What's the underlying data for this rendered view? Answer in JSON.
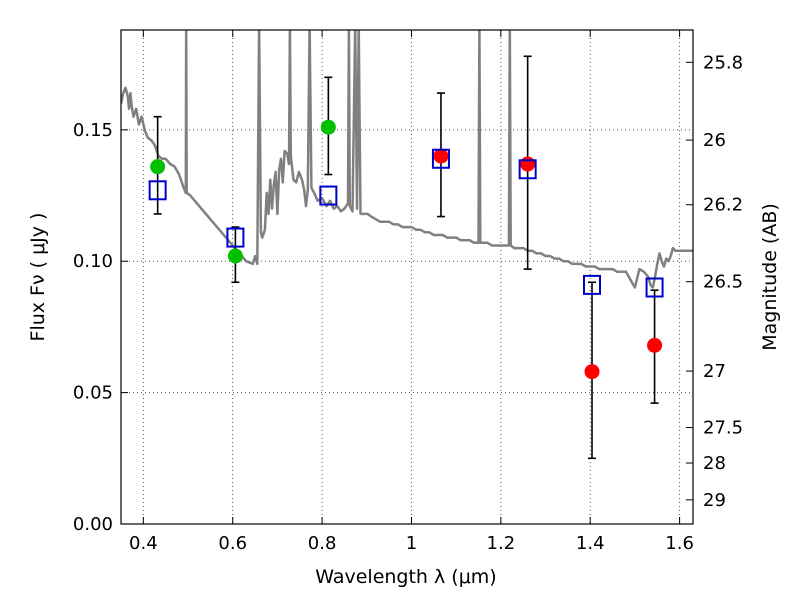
{
  "chart_data": {
    "type": "scatter",
    "title": "",
    "xlabel": "Wavelength  λ (μm)",
    "ylabel": "Flux  Fν  ( μJy )",
    "ylabel_right": "Magnitude (AB)",
    "xlim": [
      0.35,
      1.63
    ],
    "ylim": [
      0.0,
      0.188
    ],
    "grid": true,
    "legend": "none",
    "x_ticks": [
      0.4,
      0.6,
      0.8,
      1.0,
      1.2,
      1.4,
      1.6
    ],
    "x_tick_labels": [
      "0.4",
      "0.6",
      "0.8",
      "1",
      "1.2",
      "1.4",
      "1.6"
    ],
    "y_ticks": [
      0.0,
      0.05,
      0.1,
      0.15
    ],
    "y_tick_labels": [
      "0.00",
      "0.05",
      "0.10",
      "0.15"
    ],
    "right_ticks": [
      {
        "label": "25.8",
        "flux": 0.1757
      },
      {
        "label": "26",
        "flux": 0.1461
      },
      {
        "label": "26.2",
        "flux": 0.1215
      },
      {
        "label": "26.5",
        "flux": 0.0922
      },
      {
        "label": "27",
        "flux": 0.0582
      },
      {
        "label": "27.5",
        "flux": 0.0367
      },
      {
        "label": "28",
        "flux": 0.0232
      },
      {
        "label": "29",
        "flux": 0.0092
      }
    ],
    "colors": {
      "model": "#808080",
      "green": "#00c000",
      "red": "#ff0000",
      "box": "#0000cc",
      "error": "#000000",
      "grid": "#555555"
    },
    "series": [
      {
        "marker": "circle",
        "color": "green",
        "points": [
          {
            "x": 0.432,
            "y": 0.136,
            "err_lo": 0.118,
            "err_hi": 0.155
          },
          {
            "x": 0.606,
            "y": 0.102,
            "err_lo": 0.092,
            "err_hi": 0.113
          },
          {
            "x": 0.814,
            "y": 0.151,
            "err_lo": 0.133,
            "err_hi": 0.17
          }
        ]
      },
      {
        "marker": "circle",
        "color": "red",
        "points": [
          {
            "x": 1.066,
            "y": 0.14,
            "err_lo": 0.117,
            "err_hi": 0.164
          },
          {
            "x": 1.26,
            "y": 0.137,
            "err_lo": 0.097,
            "err_hi": 0.178
          },
          {
            "x": 1.404,
            "y": 0.058,
            "err_lo": 0.025,
            "err_hi": 0.092
          },
          {
            "x": 1.544,
            "y": 0.068,
            "err_lo": 0.046,
            "err_hi": 0.089
          }
        ]
      },
      {
        "marker": "square",
        "color": "box",
        "points": [
          {
            "x": 0.432,
            "y": 0.127
          },
          {
            "x": 0.606,
            "y": 0.109
          },
          {
            "x": 0.814,
            "y": 0.125
          },
          {
            "x": 1.066,
            "y": 0.139
          },
          {
            "x": 1.26,
            "y": 0.135
          },
          {
            "x": 1.404,
            "y": 0.091
          },
          {
            "x": 1.544,
            "y": 0.09
          }
        ]
      }
    ],
    "model_spectrum": {
      "points": [
        [
          0.35,
          0.16
        ],
        [
          0.355,
          0.164
        ],
        [
          0.36,
          0.166
        ],
        [
          0.365,
          0.163
        ],
        [
          0.368,
          0.158
        ],
        [
          0.371,
          0.164
        ],
        [
          0.374,
          0.159
        ],
        [
          0.378,
          0.155
        ],
        [
          0.384,
          0.158
        ],
        [
          0.39,
          0.152
        ],
        [
          0.396,
          0.155
        ],
        [
          0.403,
          0.15
        ],
        [
          0.41,
          0.147
        ],
        [
          0.418,
          0.146
        ],
        [
          0.426,
          0.144
        ],
        [
          0.434,
          0.14
        ],
        [
          0.442,
          0.139
        ],
        [
          0.45,
          0.139
        ],
        [
          0.46,
          0.137
        ],
        [
          0.47,
          0.136
        ],
        [
          0.48,
          0.133
        ],
        [
          0.49,
          0.128
        ],
        [
          0.495,
          0.126
        ],
        [
          0.496,
          0.19
        ],
        [
          0.497,
          0.126
        ],
        [
          0.505,
          0.125
        ],
        [
          0.52,
          0.122
        ],
        [
          0.54,
          0.118
        ],
        [
          0.56,
          0.114
        ],
        [
          0.58,
          0.11
        ],
        [
          0.6,
          0.106
        ],
        [
          0.615,
          0.103
        ],
        [
          0.63,
          0.1
        ],
        [
          0.645,
          0.099
        ],
        [
          0.65,
          0.102
        ],
        [
          0.655,
          0.099
        ],
        [
          0.659,
          0.19
        ],
        [
          0.663,
          0.111
        ],
        [
          0.666,
          0.109
        ],
        [
          0.672,
          0.112
        ],
        [
          0.676,
          0.126
        ],
        [
          0.68,
          0.118
        ],
        [
          0.684,
          0.131
        ],
        [
          0.688,
          0.12
        ],
        [
          0.692,
          0.129
        ],
        [
          0.696,
          0.134
        ],
        [
          0.7,
          0.118
        ],
        [
          0.704,
          0.135
        ],
        [
          0.708,
          0.139
        ],
        [
          0.712,
          0.13
        ],
        [
          0.716,
          0.142
        ],
        [
          0.722,
          0.141
        ],
        [
          0.726,
          0.137
        ],
        [
          0.728,
          0.19
        ],
        [
          0.73,
          0.14
        ],
        [
          0.736,
          0.131
        ],
        [
          0.742,
          0.13
        ],
        [
          0.748,
          0.134
        ],
        [
          0.755,
          0.131
        ],
        [
          0.76,
          0.127
        ],
        [
          0.764,
          0.121
        ],
        [
          0.768,
          0.127
        ],
        [
          0.772,
          0.19
        ],
        [
          0.776,
          0.128
        ],
        [
          0.782,
          0.126
        ],
        [
          0.79,
          0.123
        ],
        [
          0.8,
          0.124
        ],
        [
          0.81,
          0.121
        ],
        [
          0.818,
          0.123
        ],
        [
          0.826,
          0.12
        ],
        [
          0.834,
          0.121
        ],
        [
          0.842,
          0.119
        ],
        [
          0.85,
          0.12
        ],
        [
          0.858,
          0.122
        ],
        [
          0.86,
          0.19
        ],
        [
          0.862,
          0.121
        ],
        [
          0.868,
          0.119
        ],
        [
          0.874,
          0.19
        ],
        [
          0.878,
          0.12
        ],
        [
          0.882,
          0.19
        ],
        [
          0.886,
          0.118
        ],
        [
          0.894,
          0.118
        ],
        [
          0.902,
          0.118
        ],
        [
          0.91,
          0.117
        ],
        [
          0.92,
          0.116
        ],
        [
          0.93,
          0.115
        ],
        [
          0.94,
          0.115
        ],
        [
          0.95,
          0.115
        ],
        [
          0.96,
          0.114
        ],
        [
          0.97,
          0.114
        ],
        [
          0.98,
          0.113
        ],
        [
          0.99,
          0.113
        ],
        [
          1.0,
          0.113
        ],
        [
          1.01,
          0.112
        ],
        [
          1.02,
          0.112
        ],
        [
          1.03,
          0.111
        ],
        [
          1.04,
          0.111
        ],
        [
          1.05,
          0.11
        ],
        [
          1.06,
          0.11
        ],
        [
          1.07,
          0.11
        ],
        [
          1.08,
          0.109
        ],
        [
          1.09,
          0.109
        ],
        [
          1.1,
          0.109
        ],
        [
          1.11,
          0.108
        ],
        [
          1.12,
          0.108
        ],
        [
          1.13,
          0.108
        ],
        [
          1.14,
          0.107
        ],
        [
          1.15,
          0.107
        ],
        [
          1.152,
          0.19
        ],
        [
          1.154,
          0.107
        ],
        [
          1.16,
          0.107
        ],
        [
          1.17,
          0.107
        ],
        [
          1.18,
          0.106
        ],
        [
          1.19,
          0.106
        ],
        [
          1.2,
          0.106
        ],
        [
          1.21,
          0.106
        ],
        [
          1.218,
          0.106
        ],
        [
          1.22,
          0.19
        ],
        [
          1.222,
          0.106
        ],
        [
          1.23,
          0.105
        ],
        [
          1.24,
          0.105
        ],
        [
          1.25,
          0.105
        ],
        [
          1.26,
          0.104
        ],
        [
          1.27,
          0.104
        ],
        [
          1.28,
          0.103
        ],
        [
          1.29,
          0.103
        ],
        [
          1.3,
          0.102
        ],
        [
          1.31,
          0.102
        ],
        [
          1.32,
          0.101
        ],
        [
          1.33,
          0.101
        ],
        [
          1.34,
          0.1
        ],
        [
          1.35,
          0.1
        ],
        [
          1.36,
          0.099
        ],
        [
          1.37,
          0.099
        ],
        [
          1.38,
          0.099
        ],
        [
          1.39,
          0.098
        ],
        [
          1.4,
          0.098
        ],
        [
          1.41,
          0.098
        ],
        [
          1.42,
          0.097
        ],
        [
          1.43,
          0.097
        ],
        [
          1.44,
          0.097
        ],
        [
          1.45,
          0.097
        ],
        [
          1.46,
          0.096
        ],
        [
          1.47,
          0.096
        ],
        [
          1.48,
          0.096
        ],
        [
          1.49,
          0.093
        ],
        [
          1.5,
          0.09
        ],
        [
          1.51,
          0.097
        ],
        [
          1.52,
          0.096
        ],
        [
          1.53,
          0.094
        ],
        [
          1.535,
          0.091
        ],
        [
          1.54,
          0.09
        ],
        [
          1.545,
          0.094
        ],
        [
          1.55,
          0.099
        ],
        [
          1.555,
          0.103
        ],
        [
          1.56,
          0.1
        ],
        [
          1.565,
          0.098
        ],
        [
          1.57,
          0.101
        ],
        [
          1.575,
          0.1
        ],
        [
          1.58,
          0.102
        ],
        [
          1.585,
          0.105
        ],
        [
          1.59,
          0.104
        ],
        [
          1.6,
          0.104
        ],
        [
          1.61,
          0.104
        ],
        [
          1.63,
          0.104
        ]
      ]
    }
  }
}
